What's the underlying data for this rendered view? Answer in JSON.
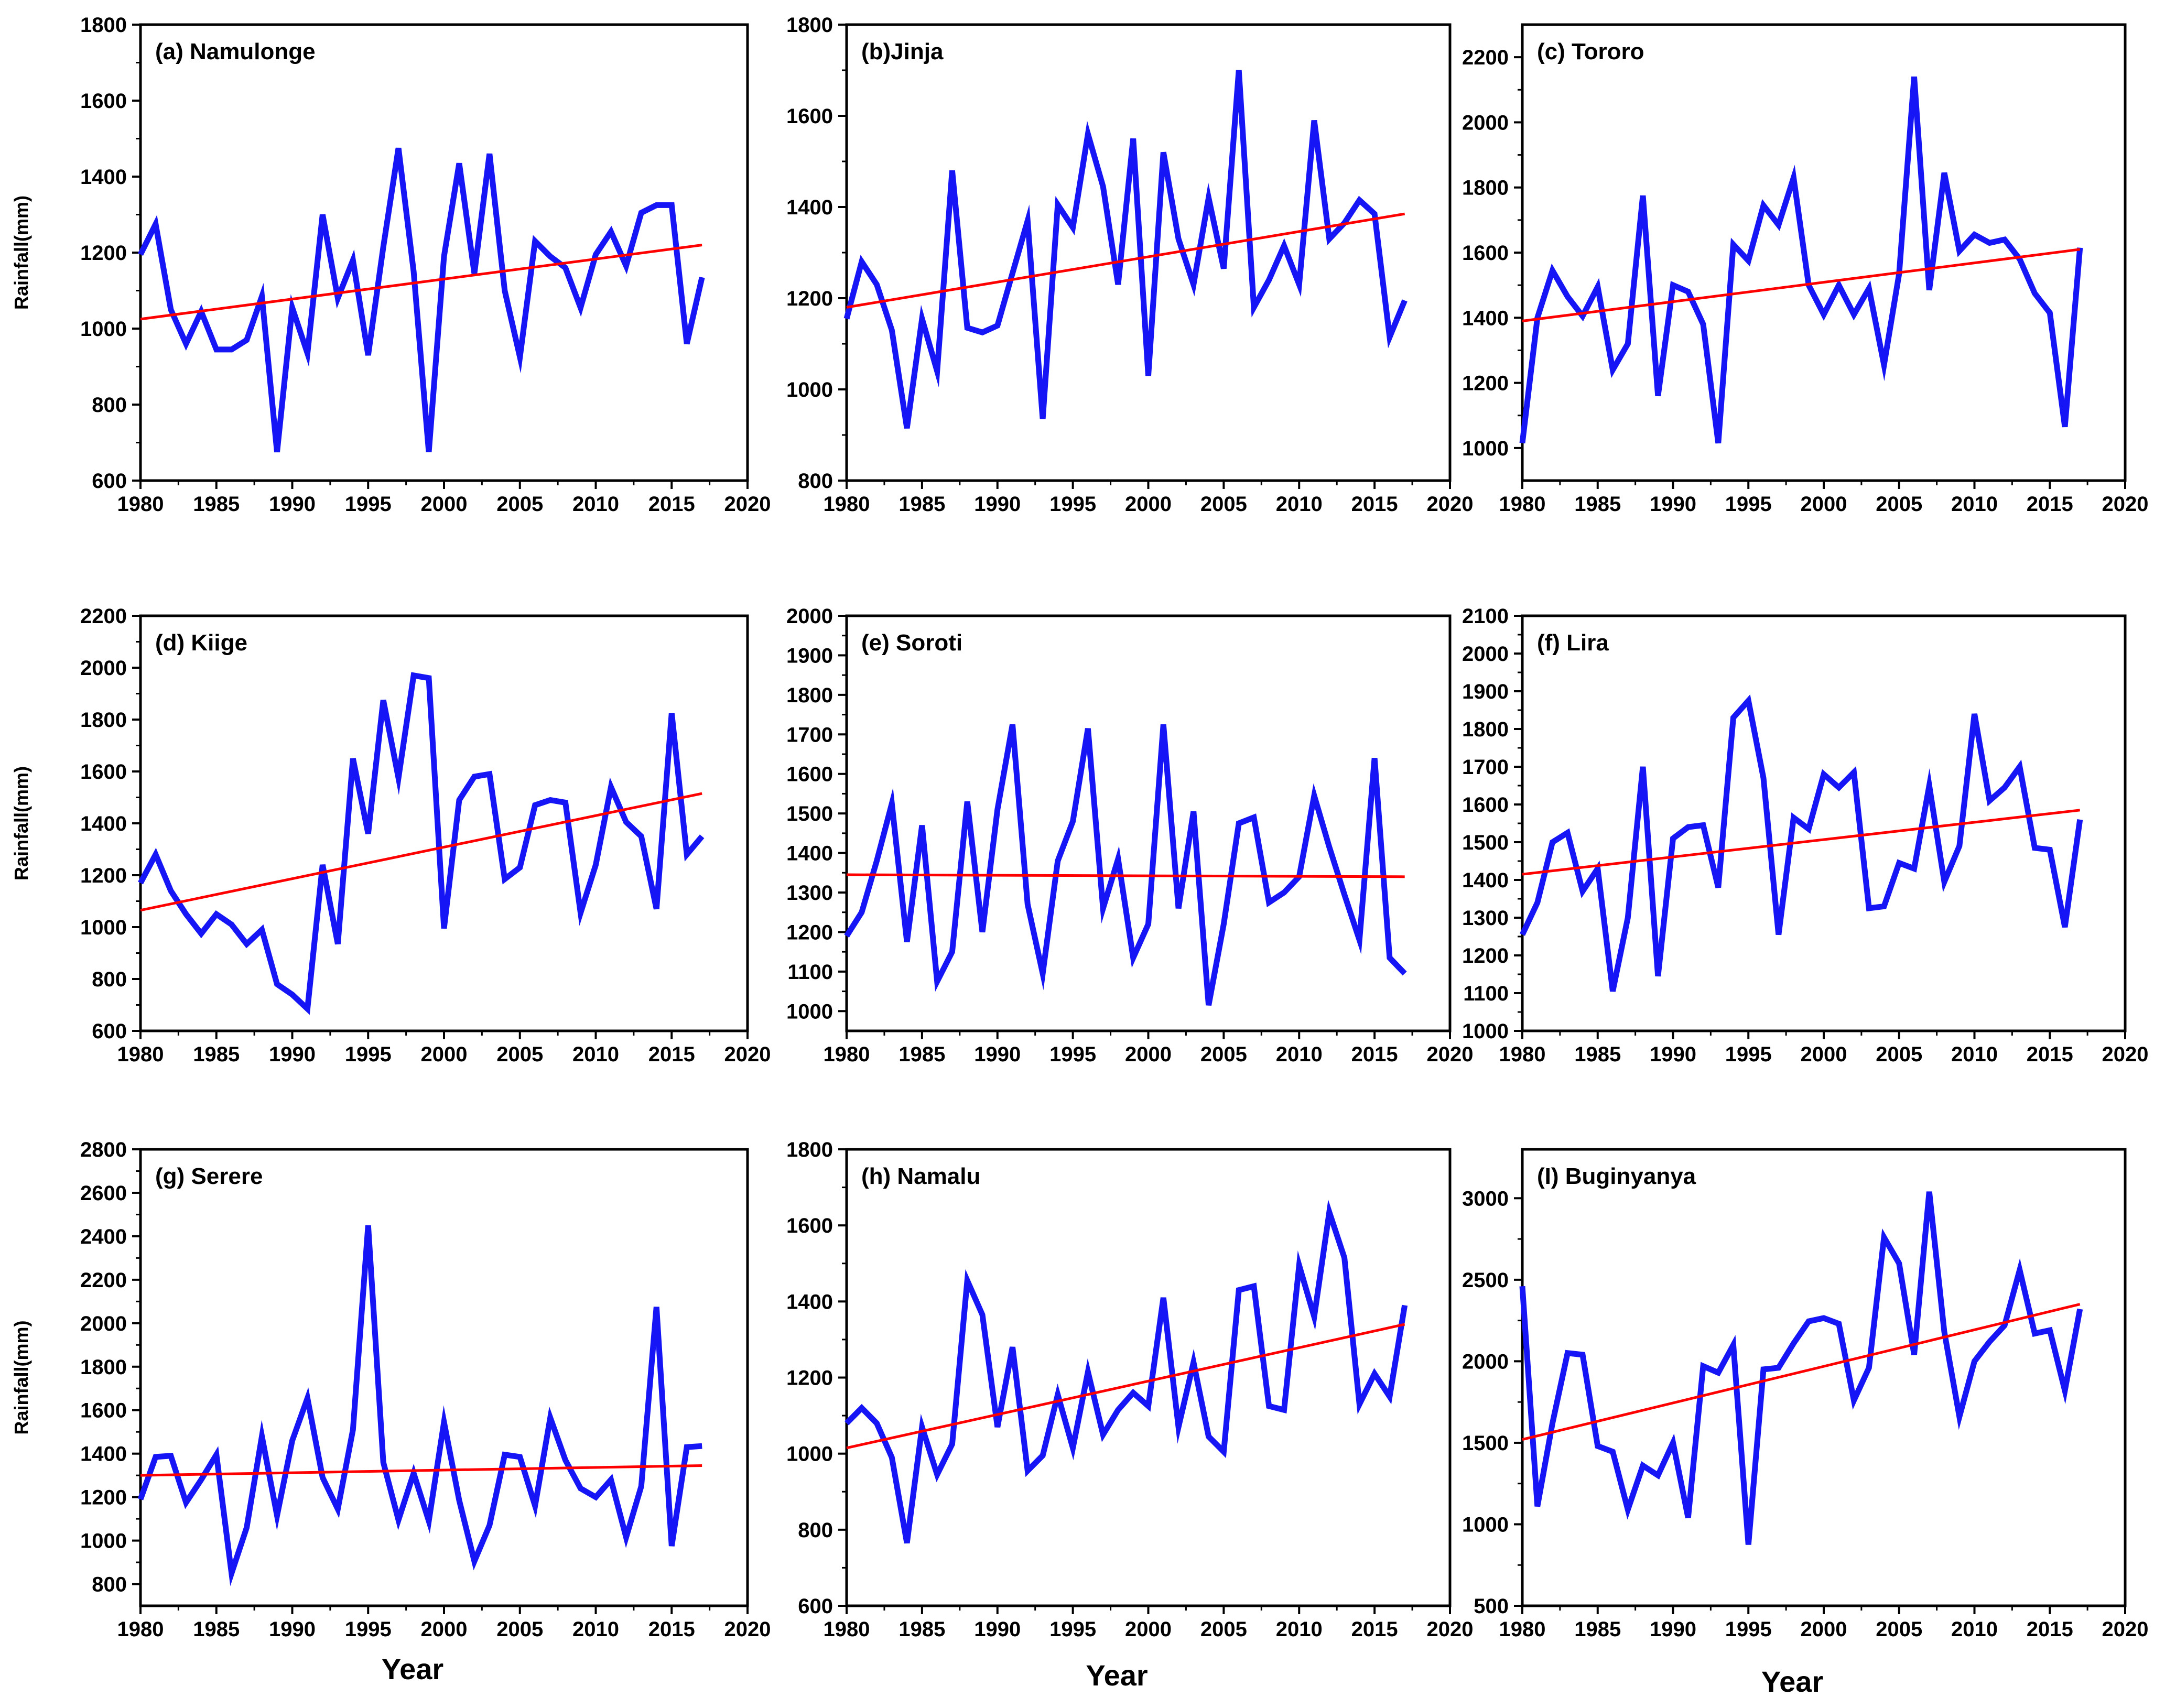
{
  "figure": {
    "colors": {
      "series": "#1515f5",
      "trend": "#ff0000",
      "axis": "#000000",
      "background": "#ffffff"
    }
  },
  "chart_data": [
    {
      "type": "line",
      "title": "(a) Namulonge",
      "xlabel": "",
      "ylabel": "Rainfall(mm)",
      "xlim": [
        1980,
        2020
      ],
      "ylim": [
        600,
        1800
      ],
      "xticks": [
        1980,
        1985,
        1990,
        1995,
        2000,
        2005,
        2010,
        2015,
        2020
      ],
      "yticks": [
        600,
        800,
        1000,
        1200,
        1400,
        1600,
        1800
      ],
      "x_start": 1980,
      "series": [
        {
          "name": "Rainfall",
          "values": [
            1195,
            1275,
            1050,
            960,
            1045,
            945,
            945,
            970,
            1085,
            675,
            1055,
            935,
            1300,
            1080,
            1180,
            930,
            1215,
            1475,
            1150,
            675,
            1190,
            1435,
            1145,
            1460,
            1100,
            925,
            1230,
            1190,
            1160,
            1055,
            1195,
            1255,
            1165,
            1305,
            1325,
            1325,
            960,
            1135
          ]
        },
        {
          "name": "Trend",
          "trend": [
            1025,
            1220
          ]
        }
      ]
    },
    {
      "type": "line",
      "title": "(b)Jinja",
      "xlabel": "",
      "ylabel": "",
      "xlim": [
        1980,
        2020
      ],
      "ylim": [
        800,
        1800
      ],
      "xticks": [
        1980,
        1985,
        1990,
        1995,
        2000,
        2005,
        2010,
        2015,
        2020
      ],
      "yticks": [
        800,
        1000,
        1200,
        1400,
        1600,
        1800
      ],
      "x_start": 1980,
      "series": [
        {
          "name": "Rainfall",
          "values": [
            1155,
            1280,
            1230,
            1130,
            915,
            1155,
            1040,
            1480,
            1135,
            1125,
            1140,
            1255,
            1370,
            935,
            1405,
            1355,
            1560,
            1445,
            1230,
            1550,
            1030,
            1520,
            1330,
            1230,
            1420,
            1265,
            1700,
            1180,
            1240,
            1315,
            1230,
            1590,
            1330,
            1365,
            1415,
            1385,
            1115,
            1195
          ]
        },
        {
          "name": "Trend",
          "trend": [
            1180,
            1385
          ]
        }
      ]
    },
    {
      "type": "line",
      "title": "(c) Tororo",
      "xlabel": "",
      "ylabel": "",
      "xlim": [
        1980,
        2020
      ],
      "ylim": [
        900,
        2300
      ],
      "xticks": [
        1980,
        1985,
        1990,
        1995,
        2000,
        2005,
        2010,
        2015,
        2020
      ],
      "yticks": [
        1000,
        1200,
        1400,
        1600,
        1800,
        2000,
        2200
      ],
      "x_start": 1980,
      "series": [
        {
          "name": "Rainfall",
          "values": [
            1015,
            1400,
            1545,
            1465,
            1405,
            1495,
            1240,
            1320,
            1775,
            1160,
            1500,
            1480,
            1380,
            1015,
            1625,
            1575,
            1745,
            1685,
            1830,
            1500,
            1410,
            1500,
            1410,
            1490,
            1255,
            1535,
            2140,
            1485,
            1845,
            1605,
            1655,
            1630,
            1640,
            1580,
            1475,
            1415,
            1065,
            1615
          ]
        },
        {
          "name": "Trend",
          "trend": [
            1390,
            1610
          ]
        }
      ]
    },
    {
      "type": "line",
      "title": "(d) Kiige",
      "xlabel": "",
      "ylabel": "Rainfall(mm)",
      "xlim": [
        1980,
        2020
      ],
      "ylim": [
        600,
        2200
      ],
      "xticks": [
        1980,
        1985,
        1990,
        1995,
        2000,
        2005,
        2010,
        2015,
        2020
      ],
      "yticks": [
        600,
        800,
        1000,
        1200,
        1400,
        1600,
        1800,
        2000,
        2200
      ],
      "x_start": 1980,
      "series": [
        {
          "name": "Rainfall",
          "values": [
            1170,
            1280,
            1140,
            1050,
            975,
            1050,
            1010,
            935,
            990,
            780,
            740,
            685,
            1240,
            935,
            1650,
            1360,
            1875,
            1575,
            1970,
            1960,
            995,
            1490,
            1580,
            1590,
            1185,
            1230,
            1470,
            1490,
            1480,
            1055,
            1240,
            1540,
            1405,
            1350,
            1070,
            1825,
            1280,
            1350
          ]
        },
        {
          "name": "Trend",
          "trend": [
            1065,
            1515
          ]
        }
      ]
    },
    {
      "type": "line",
      "title": "(e) Soroti",
      "xlabel": "",
      "ylabel": "",
      "xlim": [
        1980,
        2020
      ],
      "ylim": [
        950,
        2000
      ],
      "xticks": [
        1980,
        1985,
        1990,
        1995,
        2000,
        2005,
        2010,
        2015,
        2020
      ],
      "yticks": [
        1000,
        1100,
        1200,
        1300,
        1400,
        1500,
        1600,
        1700,
        1800,
        1900,
        2000
      ],
      "x_start": 1980,
      "series": [
        {
          "name": "Rainfall",
          "values": [
            1190,
            1250,
            1380,
            1525,
            1175,
            1470,
            1075,
            1150,
            1530,
            1200,
            1510,
            1725,
            1270,
            1095,
            1380,
            1480,
            1715,
            1260,
            1385,
            1135,
            1220,
            1725,
            1260,
            1505,
            1015,
            1220,
            1475,
            1490,
            1275,
            1300,
            1340,
            1545,
            1415,
            1295,
            1180,
            1640,
            1135,
            1095
          ]
        },
        {
          "name": "Trend",
          "trend": [
            1345,
            1340
          ]
        }
      ]
    },
    {
      "type": "line",
      "title": "(f) Lira",
      "xlabel": "",
      "ylabel": "",
      "xlim": [
        1980,
        2020
      ],
      "ylim": [
        1000,
        2100
      ],
      "xticks": [
        1980,
        1985,
        1990,
        1995,
        2000,
        2005,
        2010,
        2015,
        2020
      ],
      "yticks": [
        1000,
        1100,
        1200,
        1300,
        1400,
        1500,
        1600,
        1700,
        1800,
        1900,
        2000,
        2100
      ],
      "x_start": 1980,
      "series": [
        {
          "name": "Rainfall",
          "values": [
            1255,
            1340,
            1500,
            1525,
            1370,
            1430,
            1105,
            1300,
            1700,
            1145,
            1510,
            1540,
            1545,
            1380,
            1830,
            1875,
            1670,
            1255,
            1565,
            1535,
            1680,
            1645,
            1685,
            1325,
            1330,
            1445,
            1430,
            1650,
            1395,
            1490,
            1840,
            1610,
            1645,
            1700,
            1485,
            1480,
            1275,
            1560
          ]
        },
        {
          "name": "Trend",
          "trend": [
            1415,
            1585
          ]
        }
      ]
    },
    {
      "type": "line",
      "title": "(g) Serere",
      "xlabel": "Year",
      "ylabel": "Rainfall(mm)",
      "xlim": [
        1980,
        2020
      ],
      "ylim": [
        700,
        2800
      ],
      "xticks": [
        1980,
        1985,
        1990,
        1995,
        2000,
        2005,
        2010,
        2015,
        2020
      ],
      "yticks": [
        800,
        1000,
        1200,
        1400,
        1600,
        1800,
        2000,
        2200,
        2400,
        2600,
        2800
      ],
      "x_start": 1980,
      "series": [
        {
          "name": "Rainfall",
          "values": [
            1190,
            1385,
            1390,
            1175,
            1280,
            1395,
            850,
            1060,
            1480,
            1115,
            1460,
            1655,
            1290,
            1145,
            1510,
            2450,
            1360,
            1095,
            1310,
            1090,
            1545,
            1185,
            905,
            1070,
            1395,
            1385,
            1160,
            1565,
            1370,
            1240,
            1200,
            1280,
            1015,
            1250,
            2075,
            975,
            1430,
            1435
          ]
        },
        {
          "name": "Trend",
          "trend": [
            1300,
            1345
          ]
        }
      ]
    },
    {
      "type": "line",
      "title": "(h) Namalu",
      "xlabel": "Year",
      "ylabel": "",
      "xlim": [
        1980,
        2020
      ],
      "ylim": [
        600,
        1800
      ],
      "xticks": [
        1980,
        1985,
        1990,
        1995,
        2000,
        2005,
        2010,
        2015,
        2020
      ],
      "yticks": [
        600,
        800,
        1000,
        1200,
        1400,
        1600,
        1800
      ],
      "x_start": 1980,
      "series": [
        {
          "name": "Rainfall",
          "values": [
            1080,
            1120,
            1080,
            990,
            765,
            1070,
            945,
            1025,
            1455,
            1365,
            1070,
            1280,
            955,
            995,
            1155,
            1015,
            1215,
            1050,
            1115,
            1160,
            1125,
            1410,
            1070,
            1240,
            1045,
            1005,
            1430,
            1440,
            1125,
            1115,
            1495,
            1360,
            1635,
            1515,
            1130,
            1210,
            1150,
            1390
          ]
        },
        {
          "name": "Trend",
          "trend": [
            1015,
            1340
          ]
        }
      ]
    },
    {
      "type": "line",
      "title": "(I) Buginyanya",
      "xlabel": "Year",
      "ylabel": "",
      "xlim": [
        1980,
        2020
      ],
      "ylim": [
        500,
        3300
      ],
      "xticks": [
        1980,
        1985,
        1990,
        1995,
        2000,
        2005,
        2010,
        2015,
        2020
      ],
      "yticks": [
        500,
        1000,
        1500,
        2000,
        2500,
        3000
      ],
      "x_start": 1980,
      "series": [
        {
          "name": "Rainfall",
          "values": [
            2460,
            1110,
            1620,
            2050,
            2040,
            1480,
            1445,
            1090,
            1360,
            1300,
            1500,
            1040,
            1970,
            1930,
            2100,
            875,
            1950,
            1960,
            2110,
            2245,
            2265,
            2230,
            1760,
            1960,
            2760,
            2600,
            2040,
            3040,
            2180,
            1660,
            2000,
            2120,
            2220,
            2560,
            2170,
            2190,
            1820,
            2320
          ]
        },
        {
          "name": "Trend",
          "trend": [
            1520,
            2350
          ]
        }
      ]
    }
  ]
}
